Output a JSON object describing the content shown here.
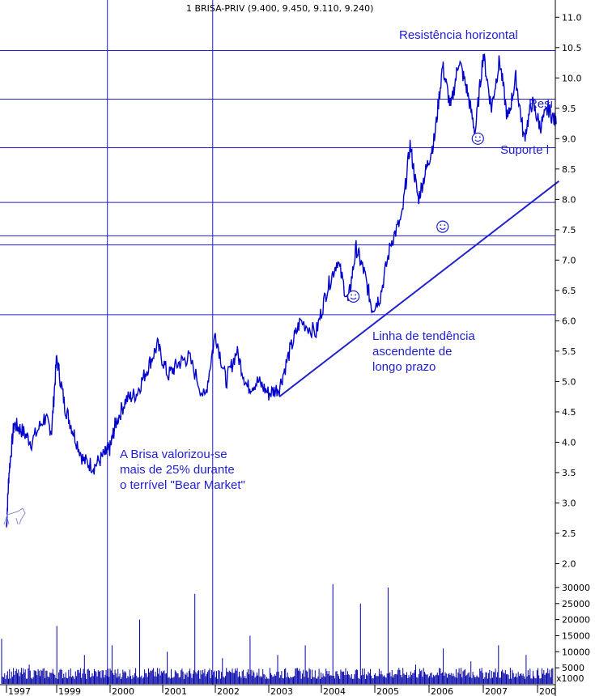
{
  "chart_data": {
    "type": "line",
    "title": "1 BRISA-PRIV (9.400, 9.450, 9.110, 9.240)",
    "x_tick_labels": [
      "1997",
      "1999",
      "2000",
      "2001",
      "2002",
      "2003",
      "2004",
      "2005",
      "2006",
      "2007",
      "200"
    ],
    "price_axis": {
      "ticks": [
        2.0,
        2.5,
        3.0,
        3.5,
        4.0,
        4.5,
        5.0,
        5.5,
        6.0,
        6.5,
        7.0,
        7.5,
        8.0,
        8.5,
        9.0,
        9.5,
        10.0,
        10.5,
        11.0
      ],
      "range": [
        1.9,
        11.15
      ]
    },
    "volume_axis": {
      "ticks": [
        5000,
        10000,
        15000,
        20000,
        25000,
        30000
      ],
      "range": [
        0,
        33000
      ],
      "unit_label": "x1000"
    },
    "series": [
      {
        "name": "BRISA-PRIV",
        "x": [
          1997.0,
          1997.1,
          1997.3,
          1997.6,
          1998.0,
          1998.5,
          1998.8,
          1999.0,
          1999.15,
          1999.3,
          1999.5,
          1999.7,
          1999.9,
          2000.0,
          2000.1,
          2000.3,
          2000.5,
          2000.7,
          2000.9,
          2001.1,
          2001.3,
          2001.5,
          2001.8,
          2002.0,
          2002.2,
          2002.4,
          2002.6,
          2002.8,
          2003.0,
          2003.2,
          2003.4,
          2003.6,
          2003.9,
          2004.1,
          2004.3,
          2004.5,
          2004.65,
          2004.8,
          2004.95,
          2005.1,
          2005.3,
          2005.5,
          2005.65,
          2005.8,
          2005.95,
          2006.1,
          2006.25,
          2006.4,
          2006.55,
          2006.7,
          2006.85,
          2007.0,
          2007.15,
          2007.3,
          2007.45,
          2007.6,
          2007.75,
          2007.9,
          2008.05,
          2008.2,
          2008.35
        ],
        "y": [
          2.6,
          3.5,
          4.3,
          4.2,
          4.0,
          4.4,
          4.2,
          5.4,
          4.6,
          4.2,
          3.7,
          3.6,
          3.8,
          3.9,
          4.3,
          4.7,
          4.8,
          5.2,
          5.6,
          5.1,
          5.3,
          5.4,
          4.7,
          5.8,
          5.0,
          5.5,
          4.9,
          5.0,
          4.8,
          4.9,
          5.5,
          6.0,
          5.8,
          6.5,
          7.0,
          6.3,
          7.2,
          6.8,
          6.2,
          6.4,
          7.3,
          7.7,
          8.9,
          8.0,
          8.5,
          9.0,
          10.2,
          9.5,
          10.3,
          9.8,
          9.1,
          10.4,
          9.5,
          10.3,
          9.3,
          10.0,
          9.0,
          9.6,
          9.2,
          9.5,
          9.24
        ]
      },
      {
        "name": "Volume",
        "values_estimate": [
          14000,
          6000,
          18000,
          9000,
          12000,
          20000,
          10000,
          28000,
          8000,
          15000,
          9000,
          12000,
          31000,
          25000,
          30000,
          6000,
          11000,
          7000,
          12000,
          9000
        ]
      }
    ],
    "horizontal_levels": [
      10.45,
      9.65,
      8.85,
      7.95,
      7.4,
      7.25,
      6.1
    ],
    "vertical_markers": [
      "2000",
      "2002"
    ],
    "trend_line": {
      "from": {
        "x": 2003.2,
        "y": 4.75
      },
      "to": {
        "x": 2008.4,
        "y": 8.3
      }
    },
    "smileys": [
      {
        "x": 2004.6,
        "y": 6.4
      },
      {
        "x": 2006.25,
        "y": 7.55
      },
      {
        "x": 2006.9,
        "y": 9.0
      }
    ],
    "annotations": {
      "resistencia": "Resistência horizontal",
      "res_partial": "Resi",
      "suporte": "Suporte l",
      "linha": [
        "Linha de tendência",
        "ascendente de",
        "longo prazo"
      ],
      "brisa": [
        "A Brisa valorizou-se",
        "mais de 25% durante",
        "o terrível \"Bear Market\""
      ]
    },
    "colors": {
      "price": "#0000cc",
      "lines": "#2020d0",
      "volume": "#0000aa",
      "text_annot": "#1f1fd0"
    },
    "grid": false
  }
}
